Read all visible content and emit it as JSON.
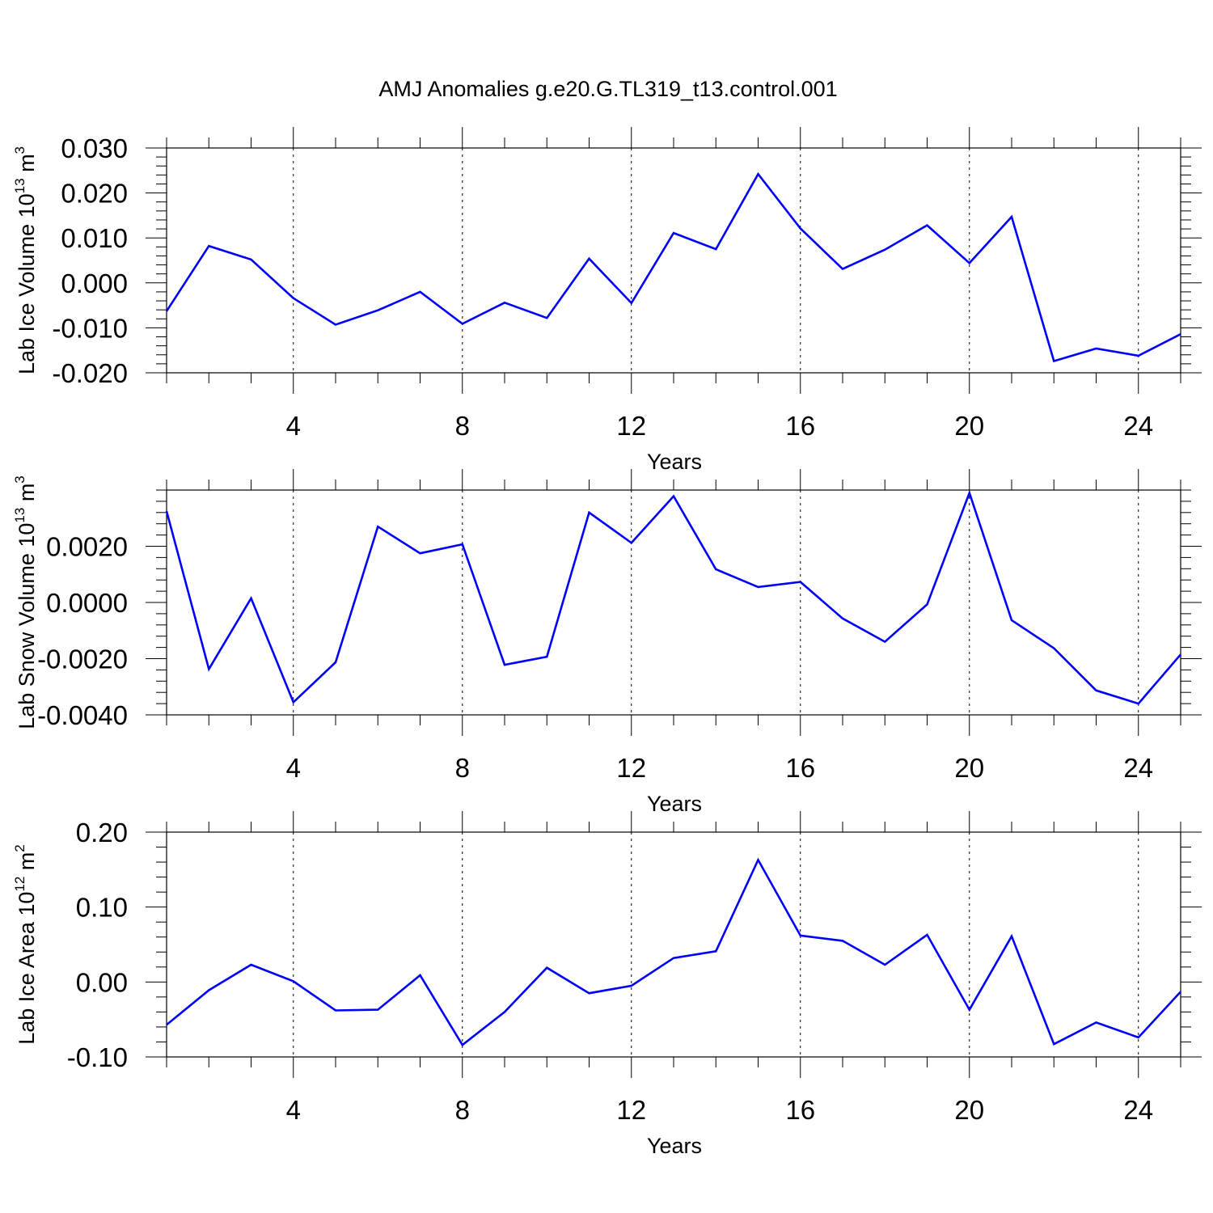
{
  "figure": {
    "title": "AMJ Anomalies g.e20.G.TL319_t13.control.001",
    "line_color": "#0000ff"
  },
  "chart_data": [
    {
      "type": "line",
      "xlabel": "Years",
      "ylabel": "Lab Ice Volume 10",
      "ylabel_exp": "13",
      "ylabel_unit": " m",
      "ylabel_unit_exp": "3",
      "xlim": [
        1,
        25
      ],
      "ylim": [
        -0.02,
        0.03
      ],
      "xticks": [
        4,
        8,
        12,
        16,
        20,
        24
      ],
      "yticks": [
        -0.02,
        -0.01,
        0.0,
        0.01,
        0.02,
        0.03
      ],
      "ytick_labels": [
        "-0.020",
        "-0.010",
        "0.000",
        "0.010",
        "0.020",
        "0.030"
      ],
      "grid": "x-dashed",
      "series": [
        {
          "x": [
            1,
            2,
            3,
            4,
            5,
            6,
            7,
            8,
            9,
            10,
            11,
            12,
            13,
            14,
            15,
            16,
            17,
            18,
            19,
            20,
            21,
            22,
            23,
            24,
            25
          ],
          "values": [
            -0.0063,
            0.0082,
            0.0052,
            -0.0034,
            -0.0093,
            -0.0061,
            -0.002,
            -0.0091,
            -0.0044,
            -0.0078,
            0.0054,
            -0.0045,
            0.0111,
            0.0075,
            0.0242,
            0.0121,
            0.0031,
            0.0074,
            0.0128,
            0.0044,
            0.0147,
            -0.0174,
            -0.0146,
            -0.0162,
            -0.0114
          ]
        }
      ]
    },
    {
      "type": "line",
      "xlabel": "Years",
      "ylabel": "Lab Snow Volume 10",
      "ylabel_exp": "13",
      "ylabel_unit": " m",
      "ylabel_unit_exp": "3",
      "xlim": [
        1,
        25
      ],
      "ylim": [
        -0.004,
        0.004
      ],
      "xticks": [
        4,
        8,
        12,
        16,
        20,
        24
      ],
      "yticks": [
        -0.004,
        -0.002,
        0.0,
        0.002
      ],
      "ytick_labels": [
        "-0.0040",
        "-0.0020",
        "0.0000",
        "0.0020"
      ],
      "grid": "x-dashed",
      "series": [
        {
          "x": [
            1,
            2,
            3,
            4,
            5,
            6,
            7,
            8,
            9,
            10,
            11,
            12,
            13,
            14,
            15,
            16,
            17,
            18,
            19,
            20,
            21,
            22,
            23,
            24,
            25
          ],
          "values": [
            0.00325,
            -0.00237,
            0.00015,
            -0.00355,
            -0.00213,
            0.0027,
            0.00175,
            0.00207,
            -0.00222,
            -0.00193,
            0.0032,
            0.00212,
            0.00378,
            0.00118,
            0.00055,
            0.00073,
            -0.00057,
            -0.0014,
            -7e-05,
            0.0039,
            -0.00063,
            -0.00163,
            -0.00313,
            -0.0036,
            -0.00185
          ]
        }
      ]
    },
    {
      "type": "line",
      "xlabel": "Years",
      "ylabel": "Lab Ice Area 10",
      "ylabel_exp": "12",
      "ylabel_unit": " m",
      "ylabel_unit_exp": "2",
      "xlim": [
        1,
        25
      ],
      "ylim": [
        -0.1,
        0.2
      ],
      "xticks": [
        4,
        8,
        12,
        16,
        20,
        24
      ],
      "yticks": [
        -0.1,
        0.0,
        0.1,
        0.2
      ],
      "ytick_labels": [
        "-0.10",
        "0.00",
        "0.10",
        "0.20"
      ],
      "grid": "x-dashed",
      "series": [
        {
          "x": [
            1,
            2,
            3,
            4,
            5,
            6,
            7,
            8,
            9,
            10,
            11,
            12,
            13,
            14,
            15,
            16,
            17,
            18,
            19,
            20,
            21,
            22,
            23,
            24,
            25
          ],
          "values": [
            -0.057,
            -0.011,
            0.023,
            0.001,
            -0.038,
            -0.037,
            0.009,
            -0.084,
            -0.04,
            0.019,
            -0.015,
            -0.005,
            0.032,
            0.041,
            0.163,
            0.062,
            0.055,
            0.023,
            0.063,
            -0.037,
            0.061,
            -0.083,
            -0.054,
            -0.074,
            -0.013
          ]
        }
      ]
    }
  ]
}
